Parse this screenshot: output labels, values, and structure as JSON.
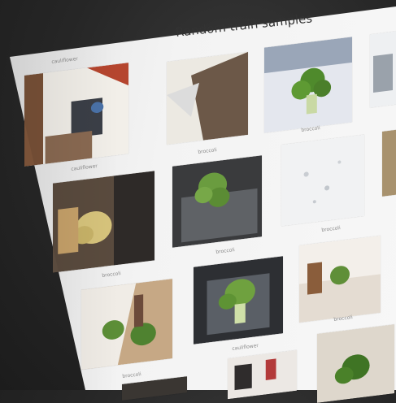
{
  "figure": {
    "title": "Random train samples",
    "tiles": [
      {
        "label": "cauliflower",
        "icon": "cauliflower-photo-icon"
      },
      {
        "label": "broccoli",
        "icon": "broccoli-photo-icon"
      },
      {
        "label": "cauliflower",
        "icon": "cauliflower-photo-icon"
      },
      {
        "label": "broccoli",
        "icon": "broccoli-photo-icon"
      },
      {
        "label": "broccoli",
        "icon": "broccoli-photo-icon"
      },
      {
        "label": "broccoli",
        "icon": "broccoli-photo-icon"
      },
      {
        "label": "broccoli",
        "icon": "broccoli-photo-icon"
      },
      {
        "label": "broccoli",
        "icon": "broccoli-photo-icon"
      },
      {
        "label": "broccoli",
        "icon": "broccoli-photo-icon"
      },
      {
        "label": "broccoli",
        "icon": "broccoli-photo-icon"
      },
      {
        "label": "cauliflower",
        "icon": "cauliflower-photo-icon"
      }
    ]
  },
  "colors": {
    "background": "#262626",
    "sheet": "#f3f3f3",
    "broccoli": "#5e8f3a",
    "cauliflower": "#d9c77a"
  }
}
